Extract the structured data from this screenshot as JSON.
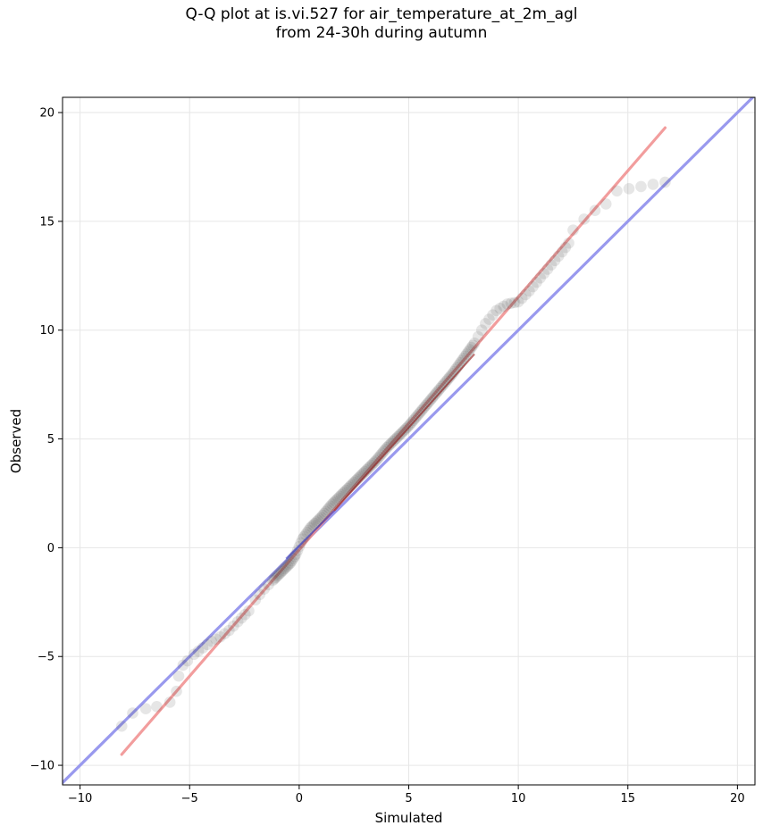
{
  "chart_data": {
    "type": "scatter",
    "title_lines": [
      "Q-Q plot at is.vi.527 for air_temperature_at_2m_agl",
      "from 24-30h during autumn"
    ],
    "xlabel": "Simulated",
    "ylabel": "Observed",
    "xlim": [
      -10.8,
      20.8
    ],
    "ylim": [
      -10.9,
      20.7
    ],
    "xticks": [
      -10,
      -5,
      0,
      5,
      10,
      15,
      20
    ],
    "yticks": [
      -10,
      -5,
      0,
      5,
      10,
      15,
      20
    ],
    "tick_labels": {
      "x": [
        "−10",
        "−5",
        "0",
        "5",
        "10",
        "15",
        "20"
      ],
      "y": [
        "−10",
        "−5",
        "0",
        "5",
        "10",
        "15",
        "20"
      ]
    },
    "grid": true,
    "colors": {
      "points": "#404040",
      "identity_line": "#9999ee",
      "fit_line": "#f08c8c",
      "lower_segment": "#2b2bc0",
      "upper_segment": "#8b0000"
    },
    "identity_line": {
      "x": [
        -10.8,
        20.8
      ],
      "y": [
        -10.8,
        20.8
      ]
    },
    "fit_line": {
      "x": [
        -8.1,
        16.7
      ],
      "y": [
        -9.5,
        19.3
      ]
    },
    "quantile_knots": {
      "x": [
        -8.1,
        -7.6,
        -7.0,
        -6.5,
        -5.9,
        -5.6,
        -5.5,
        -5.3,
        -5.1,
        -4.8,
        -4.4,
        -4.0,
        -3.6,
        -3.2,
        -2.8,
        -2.3,
        -2.0,
        -1.6,
        -1.2,
        -0.8,
        -0.4,
        -0.15,
        0.0,
        0.15,
        0.5,
        1.0,
        1.5,
        2.0,
        2.5,
        3.0,
        3.5,
        4.0,
        4.5,
        5.0,
        5.5,
        6.0,
        6.5,
        7.0,
        7.5,
        8.0,
        8.5,
        9.0,
        9.5,
        10.0,
        10.5,
        11.0,
        11.5,
        12.0,
        12.3,
        12.5,
        13.0,
        13.5,
        14.0,
        14.5,
        16.7
      ],
      "y": [
        -8.2,
        -7.6,
        -7.4,
        -7.3,
        -7.1,
        -6.6,
        -5.9,
        -5.4,
        -5.2,
        -4.9,
        -4.6,
        -4.3,
        -4.1,
        -3.8,
        -3.4,
        -2.9,
        -2.4,
        -1.9,
        -1.5,
        -1.1,
        -0.7,
        -0.3,
        0.05,
        0.4,
        0.9,
        1.4,
        2.0,
        2.5,
        3.0,
        3.5,
        4.0,
        4.6,
        5.1,
        5.6,
        6.2,
        6.8,
        7.4,
        8.0,
        8.7,
        9.4,
        10.3,
        10.9,
        11.2,
        11.3,
        11.8,
        12.4,
        13.0,
        13.6,
        14.0,
        14.6,
        15.1,
        15.5,
        15.8,
        16.4,
        16.8
      ]
    }
  }
}
